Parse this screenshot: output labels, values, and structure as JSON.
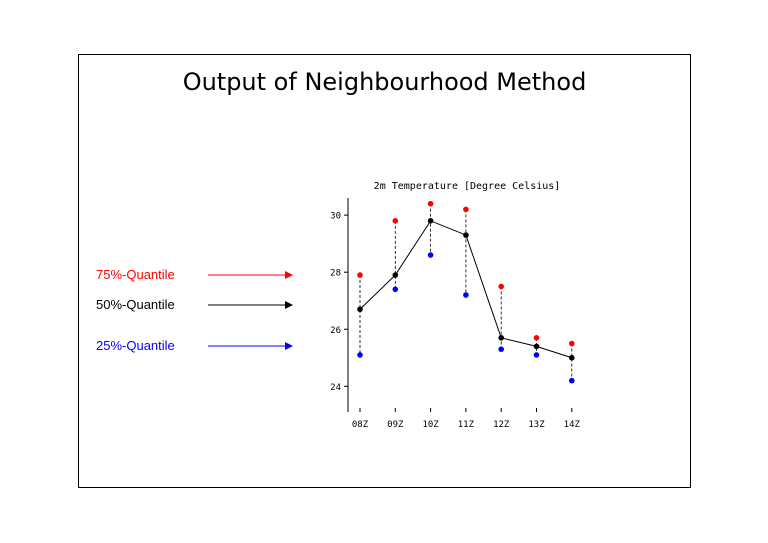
{
  "slide": {
    "title": "Output of Neighbourhood Method"
  },
  "quantile_labels": [
    {
      "text": "75%-Quantile",
      "color": "#ff0000"
    },
    {
      "text": "50%-Quantile",
      "color": "#000000"
    },
    {
      "text": "25%-Quantile",
      "color": "#0000ff"
    }
  ],
  "chart_data": {
    "type": "line",
    "title": "2m Temperature [Degree Celsius]",
    "xlabel": "",
    "ylabel": "",
    "categories": [
      "08Z",
      "09Z",
      "10Z",
      "11Z",
      "12Z",
      "13Z",
      "14Z"
    ],
    "yticks": [
      "24",
      "26",
      "28",
      "30"
    ],
    "ytick_values": [
      24,
      26,
      28,
      30
    ],
    "ylim": [
      23.1,
      30.6
    ],
    "grid": false,
    "series": [
      {
        "name": "75%-Quantile",
        "color": "#ff0000",
        "style": "points",
        "values": [
          27.9,
          29.8,
          30.4,
          30.2,
          27.5,
          25.7,
          25.5
        ]
      },
      {
        "name": "50%-Quantile",
        "color": "#000000",
        "style": "line",
        "values": [
          26.7,
          27.9,
          29.8,
          29.3,
          25.7,
          25.4,
          25.0
        ]
      },
      {
        "name": "25%-Quantile",
        "color": "#0000ff",
        "style": "points",
        "values": [
          25.1,
          27.4,
          28.6,
          27.2,
          25.3,
          25.1,
          24.2
        ]
      }
    ]
  }
}
